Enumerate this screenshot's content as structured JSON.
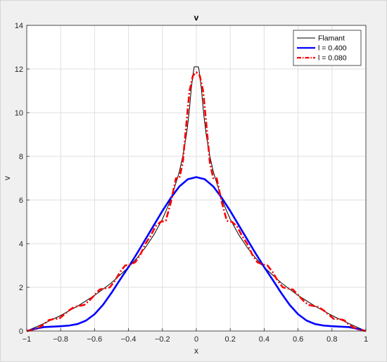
{
  "chart_data": {
    "type": "line",
    "title": "v",
    "xlabel": "x",
    "ylabel": "v",
    "xlim": [
      -1,
      1
    ],
    "ylim": [
      0,
      14
    ],
    "xticks": [
      "−1",
      "−0.8",
      "−0.6",
      "−0.4",
      "−0.2",
      "0",
      "0.2",
      "0.4",
      "0.6",
      "0.8",
      "1"
    ],
    "yticks": [
      "0",
      "2",
      "4",
      "6",
      "8",
      "10",
      "12",
      "14"
    ],
    "grid": true,
    "legend_position": "top-right",
    "series": [
      {
        "name": "Flamant",
        "color": "#000000",
        "style": "solid-thin",
        "x": [
          -1,
          -0.9,
          -0.8,
          -0.7,
          -0.6,
          -0.5,
          -0.4,
          -0.35,
          -0.3,
          -0.25,
          -0.2,
          -0.15,
          -0.1,
          -0.08,
          -0.06,
          -0.05,
          -0.04,
          -0.03,
          -0.02,
          -0.015,
          -0.012,
          0.012,
          0.015,
          0.02,
          0.03,
          0.04,
          0.05,
          0.06,
          0.08,
          0.1,
          0.15,
          0.2,
          0.25,
          0.3,
          0.35,
          0.4,
          0.5,
          0.6,
          0.7,
          0.8,
          0.9,
          1
        ],
        "y": [
          0,
          0.34,
          0.71,
          1.14,
          1.63,
          2.21,
          2.92,
          3.34,
          3.83,
          4.41,
          5.12,
          6.03,
          7.3,
          8.0,
          8.9,
          9.5,
          10.2,
          11.1,
          11.7,
          12.0,
          12.1,
          12.1,
          12.0,
          11.7,
          11.1,
          10.2,
          9.5,
          8.9,
          8.0,
          7.3,
          6.03,
          5.12,
          4.41,
          3.83,
          3.34,
          2.92,
          2.21,
          1.63,
          1.14,
          0.71,
          0.34,
          0
        ]
      },
      {
        "name": "l = 0.400",
        "color": "#0000ff",
        "style": "solid-thick",
        "x": [
          -1,
          -0.95,
          -0.9,
          -0.85,
          -0.8,
          -0.75,
          -0.7,
          -0.65,
          -0.6,
          -0.55,
          -0.5,
          -0.45,
          -0.4,
          -0.35,
          -0.3,
          -0.25,
          -0.2,
          -0.15,
          -0.1,
          -0.05,
          0,
          0.05,
          0.1,
          0.15,
          0.2,
          0.25,
          0.3,
          0.35,
          0.4,
          0.45,
          0.5,
          0.55,
          0.6,
          0.65,
          0.7,
          0.75,
          0.8,
          0.85,
          0.9,
          0.95,
          1
        ],
        "y": [
          0,
          0.1,
          0.18,
          0.2,
          0.22,
          0.25,
          0.32,
          0.48,
          0.77,
          1.2,
          1.75,
          2.35,
          2.93,
          3.55,
          4.2,
          4.85,
          5.5,
          6.1,
          6.62,
          6.95,
          7.05,
          6.95,
          6.62,
          6.1,
          5.5,
          4.85,
          4.2,
          3.55,
          2.93,
          2.35,
          1.75,
          1.2,
          0.77,
          0.48,
          0.32,
          0.25,
          0.22,
          0.2,
          0.18,
          0.1,
          0
        ]
      },
      {
        "name": "l = 0.080",
        "color": "#ff0000",
        "style": "dash-dot-thick",
        "x": [
          -1,
          -0.96,
          -0.93,
          -0.9,
          -0.87,
          -0.84,
          -0.81,
          -0.78,
          -0.75,
          -0.72,
          -0.69,
          -0.66,
          -0.63,
          -0.6,
          -0.57,
          -0.54,
          -0.51,
          -0.48,
          -0.45,
          -0.42,
          -0.39,
          -0.36,
          -0.33,
          -0.3,
          -0.27,
          -0.24,
          -0.21,
          -0.18,
          -0.15,
          -0.12,
          -0.1,
          -0.08,
          -0.06,
          -0.04,
          -0.02,
          0,
          0.02,
          0.04,
          0.06,
          0.08,
          0.1,
          0.12,
          0.15,
          0.18,
          0.21,
          0.24,
          0.27,
          0.3,
          0.33,
          0.36,
          0.39,
          0.42,
          0.45,
          0.48,
          0.51,
          0.54,
          0.57,
          0.6,
          0.63,
          0.66,
          0.69,
          0.72,
          0.75,
          0.78,
          0.81,
          0.84,
          0.87,
          0.9,
          0.93,
          0.96,
          1
        ],
        "y": [
          0,
          0.05,
          0.15,
          0.3,
          0.5,
          0.55,
          0.56,
          0.75,
          0.95,
          1.1,
          1.15,
          1.2,
          1.4,
          1.65,
          1.9,
          1.95,
          2.0,
          2.3,
          2.7,
          3.0,
          3.05,
          3.15,
          3.5,
          4.0,
          4.35,
          4.8,
          5.0,
          5.05,
          5.9,
          7.0,
          7.0,
          7.7,
          9.4,
          11.0,
          11.7,
          11.85,
          11.7,
          11.0,
          9.4,
          7.7,
          7.0,
          7.0,
          5.9,
          5.05,
          5.0,
          4.8,
          4.35,
          4.0,
          3.5,
          3.15,
          3.05,
          3.0,
          2.7,
          2.3,
          2.0,
          1.95,
          1.9,
          1.65,
          1.4,
          1.2,
          1.15,
          1.1,
          0.95,
          0.75,
          0.56,
          0.55,
          0.5,
          0.3,
          0.15,
          0.05,
          0
        ]
      }
    ]
  }
}
